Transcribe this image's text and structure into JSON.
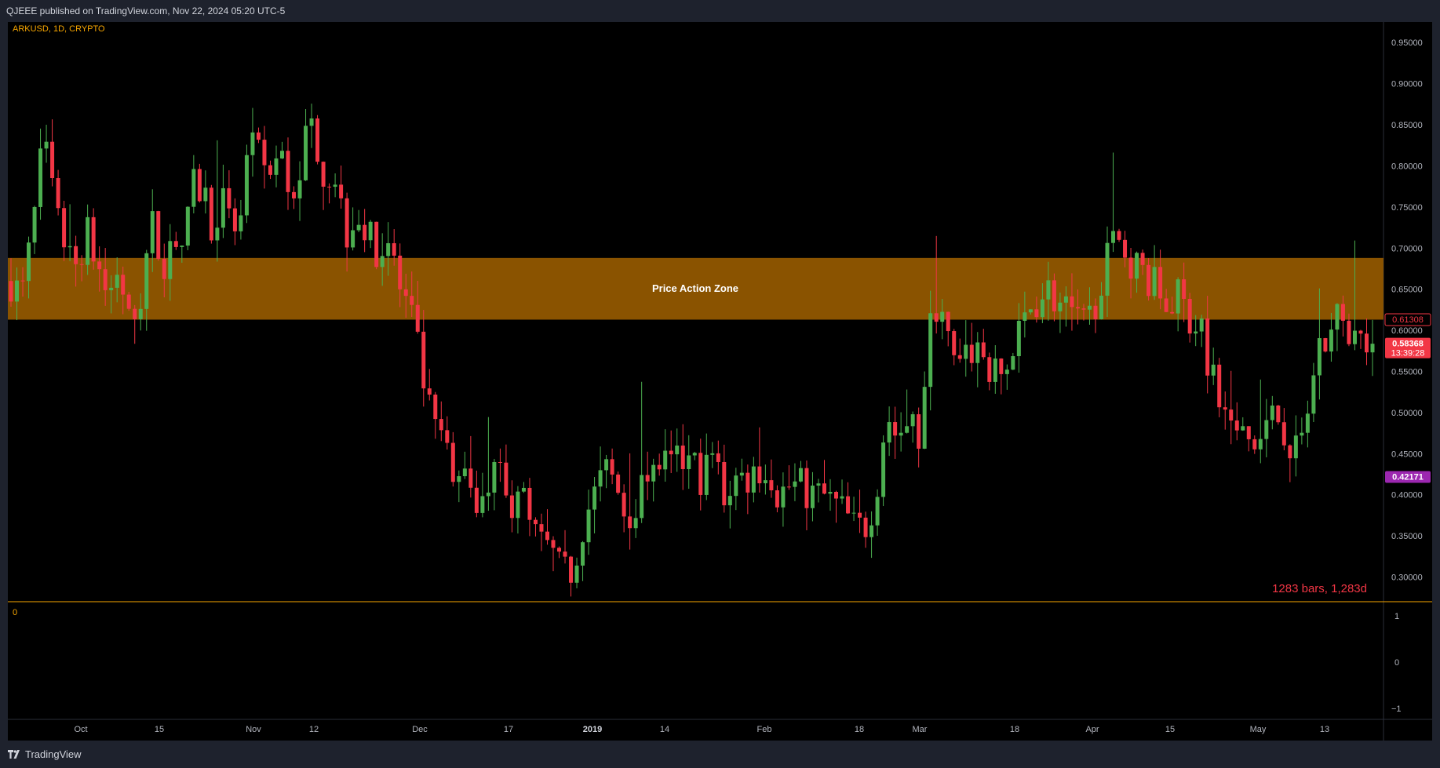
{
  "header": {
    "publisher_line": "QJEEE published on TradingView.com, Nov 22, 2024 05:20 UTC-5"
  },
  "footer": {
    "brand": "TradingView"
  },
  "chart_data": {
    "type": "candlestick",
    "symbol_label": "ARKUSD, 1D, CRYPTO",
    "y_ticks": [
      "0.95000",
      "0.90000",
      "0.85000",
      "0.80000",
      "0.75000",
      "0.70000",
      "0.65000",
      "0.60000",
      "0.55000",
      "0.50000",
      "0.45000",
      "0.40000",
      "0.35000",
      "0.30000"
    ],
    "ylim": [
      0.27,
      0.975
    ],
    "x_ticks": [
      {
        "label": "Oct",
        "bold": false
      },
      {
        "label": "15",
        "bold": false
      },
      {
        "label": "Nov",
        "bold": false
      },
      {
        "label": "12",
        "bold": false
      },
      {
        "label": "Dec",
        "bold": false
      },
      {
        "label": "17",
        "bold": false
      },
      {
        "label": "2019",
        "bold": true
      },
      {
        "label": "14",
        "bold": false
      },
      {
        "label": "Feb",
        "bold": false
      },
      {
        "label": "18",
        "bold": false
      },
      {
        "label": "Mar",
        "bold": false
      },
      {
        "label": "18",
        "bold": false
      },
      {
        "label": "Apr",
        "bold": false
      },
      {
        "label": "15",
        "bold": false
      },
      {
        "label": "May",
        "bold": false
      },
      {
        "label": "13",
        "bold": false
      }
    ],
    "zone": {
      "label": "Price Action Zone",
      "top": 0.688,
      "bottom": 0.613,
      "color": "#8a5300"
    },
    "price_labels": [
      {
        "value": "0.61308",
        "price": 0.613,
        "style": "outline",
        "color": "#f23645"
      },
      {
        "value": "0.58368",
        "price": 0.5837,
        "style": "solid",
        "color": "#f23645",
        "sub": "13:39:28"
      },
      {
        "value": "0.42171",
        "price": 0.4217,
        "style": "solid",
        "color": "#9c27b0"
      }
    ],
    "bars_note": "1283 bars, 1,283d",
    "lower_pane": {
      "left_value": "0",
      "y_ticks": [
        "1",
        "0",
        "−1"
      ]
    },
    "colors": {
      "up": "#4caf50",
      "down": "#f23645",
      "grid_border": "#2a2e39",
      "text": "#b2b5be",
      "symbol_text": "#f7a600",
      "separator": "#f7a600"
    },
    "anchors": [
      [
        0.66,
        0.64,
        0.72,
        0.83,
        0.75
      ],
      [
        0.7,
        0.68,
        0.72,
        0.68,
        0.64
      ],
      [
        0.68,
        0.6,
        0.64,
        0.73,
        0.68
      ],
      [
        0.72,
        0.7,
        0.78,
        0.76,
        0.71
      ],
      [
        0.77,
        0.72,
        0.82,
        0.81,
        0.79
      ],
      [
        0.81,
        0.76,
        0.82,
        0.85,
        0.79
      ],
      [
        0.79,
        0.72,
        0.75,
        0.71,
        0.7
      ],
      [
        0.71,
        0.65,
        0.62,
        0.55,
        0.48
      ],
      [
        0.47,
        0.4,
        0.44,
        0.4,
        0.42
      ],
      [
        0.43,
        0.38,
        0.42,
        0.36,
        0.34
      ],
      [
        0.33,
        0.3,
        0.31,
        0.37,
        0.4
      ],
      [
        0.43,
        0.41,
        0.37,
        0.4,
        0.41
      ],
      [
        0.44,
        0.43,
        0.44,
        0.44,
        0.42
      ],
      [
        0.45,
        0.4,
        0.42,
        0.42,
        0.43
      ],
      [
        0.44,
        0.4,
        0.41,
        0.41,
        0.4
      ],
      [
        0.4,
        0.39,
        0.38,
        0.36,
        0.36
      ],
      [
        0.4,
        0.5,
        0.47,
        0.49,
        0.47
      ],
      [
        0.6,
        0.65,
        0.56,
        0.55,
        0.58
      ],
      [
        0.57,
        0.54,
        0.55,
        0.58,
        0.62
      ],
      [
        0.64,
        0.65,
        0.63,
        0.62,
        0.6
      ],
      [
        0.62,
        0.67,
        0.7,
        0.7,
        0.68
      ],
      [
        0.67,
        0.65,
        0.63,
        0.64,
        0.62
      ],
      [
        0.6,
        0.55,
        0.5,
        0.47,
        0.47
      ],
      [
        0.46,
        0.47,
        0.5,
        0.48,
        0.45
      ],
      [
        0.5,
        0.57,
        0.6,
        0.62,
        0.6
      ],
      [
        0.59,
        0.58
      ]
    ]
  }
}
